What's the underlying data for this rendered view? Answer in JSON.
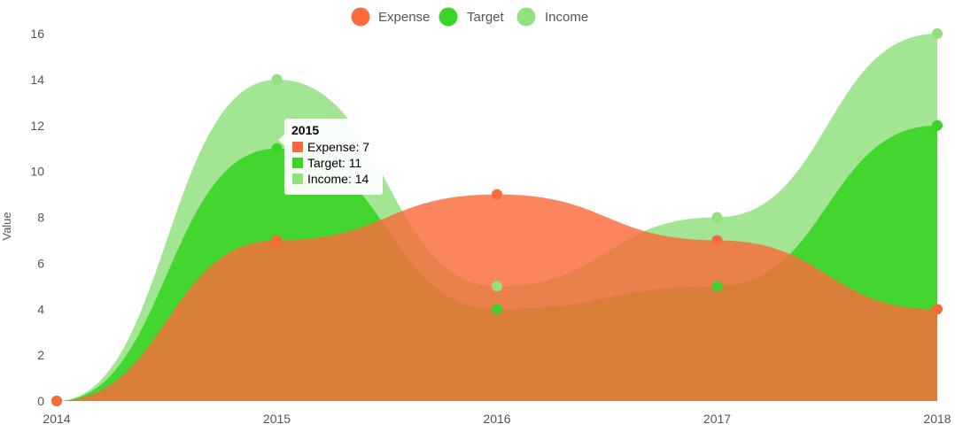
{
  "chart_data": {
    "type": "area",
    "x": [
      "2014",
      "2015",
      "2016",
      "2017",
      "2018"
    ],
    "ylabel": "Value",
    "ylim": [
      0,
      16
    ],
    "yticks": [
      0,
      2,
      4,
      6,
      8,
      10,
      12,
      14,
      16
    ],
    "grid": false,
    "legend_position": "top-center",
    "series": [
      {
        "name": "Expense",
        "values": [
          0,
          7,
          9,
          7,
          4
        ],
        "color": "#FA6A3C"
      },
      {
        "name": "Target",
        "values": [
          0,
          11,
          4,
          5,
          12
        ],
        "color": "#39D425"
      },
      {
        "name": "Income",
        "values": [
          0,
          14,
          5,
          8,
          16
        ],
        "color": "#92E080"
      }
    ],
    "tooltip": {
      "title": "2015",
      "items": [
        {
          "label": "Expense: 7",
          "color": "#FA6A3C"
        },
        {
          "label": "Target: 11",
          "color": "#39D425"
        },
        {
          "label": "Income: 14",
          "color": "#92E080"
        }
      ]
    }
  }
}
